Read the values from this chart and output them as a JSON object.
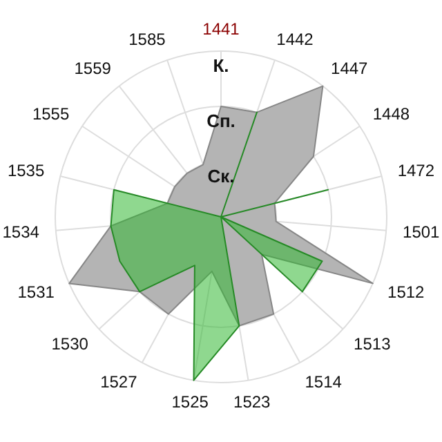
{
  "chart_data": {
    "type": "radar",
    "categories": [
      "1441",
      "1442",
      "1447",
      "1448",
      "1472",
      "1501",
      "1512",
      "1513",
      "1514",
      "1523",
      "1525",
      "1527",
      "1530",
      "1531",
      "1534",
      "1535",
      "1555",
      "1559",
      "1585"
    ],
    "series": [
      {
        "color": "#b4b4b4",
        "values": [
          2,
          2,
          3,
          2,
          1,
          1,
          3,
          1,
          2,
          2,
          1,
          2,
          2,
          3,
          2,
          1,
          1,
          1,
          1
        ]
      },
      {
        "color": "#33b833",
        "values": [
          0,
          2,
          0,
          0,
          2,
          0,
          2,
          2,
          0,
          2,
          3,
          1,
          2,
          2,
          2,
          2,
          0,
          0,
          0
        ]
      }
    ],
    "ylim": [
      0,
      3
    ],
    "yticks": [
      {
        "value": 1,
        "label": "Ск."
      },
      {
        "value": 2,
        "label": "Сп."
      },
      {
        "value": 3,
        "label": "К."
      }
    ],
    "grid": true
  }
}
